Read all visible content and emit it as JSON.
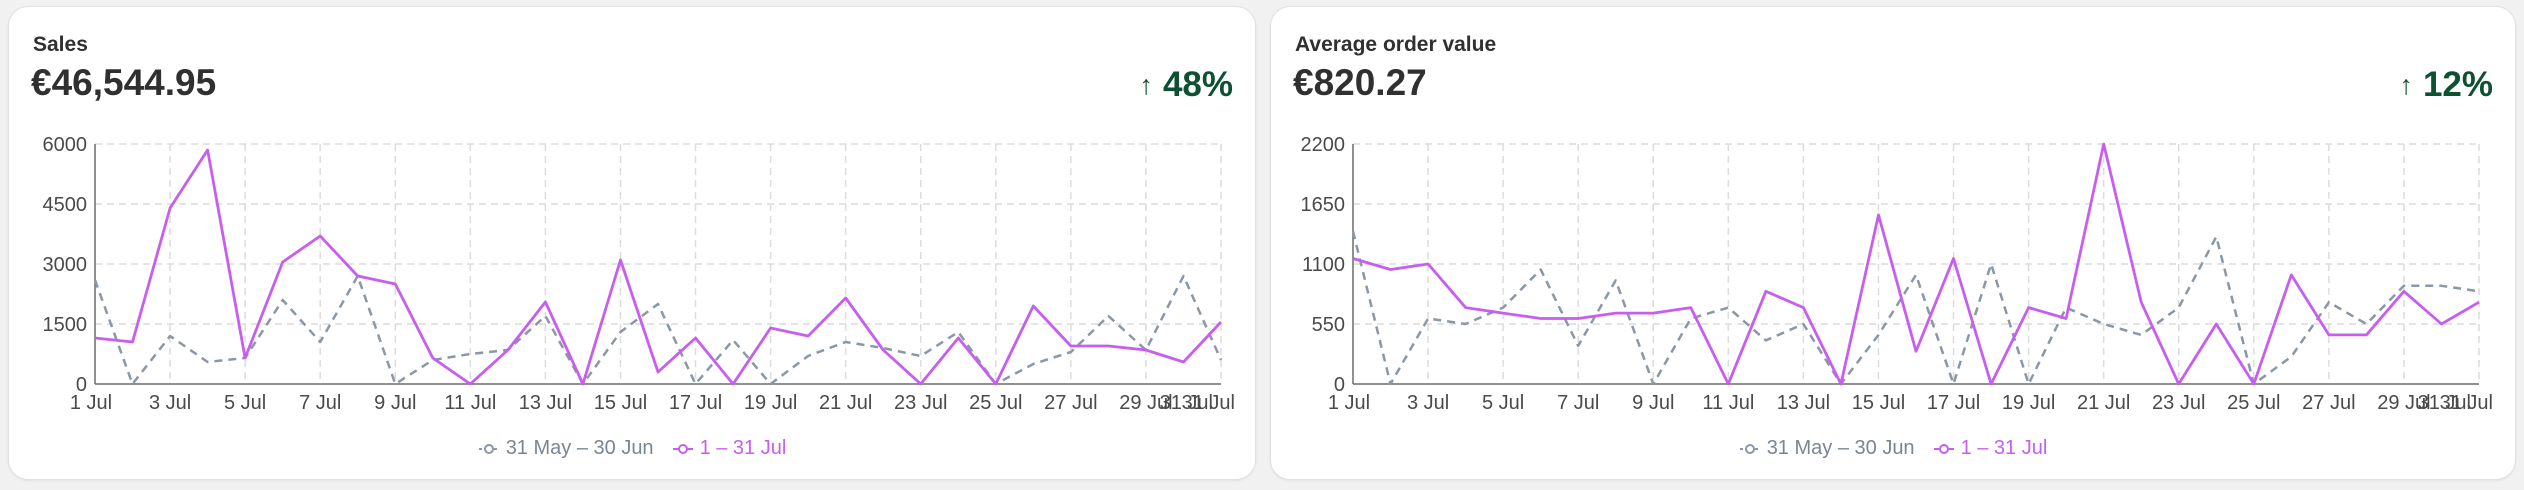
{
  "cards": [
    {
      "title": "Sales",
      "value": "€46,544.95",
      "change": "48%",
      "change_icon": "arrow-up-icon",
      "change_color": "#0c5132"
    },
    {
      "title": "Average order value",
      "value": "€820.27",
      "change": "12%",
      "change_icon": "arrow-up-icon",
      "change_color": "#0c5132"
    }
  ],
  "chart_data": [
    {
      "type": "line",
      "title": "Sales",
      "xlabel": "",
      "ylabel": "",
      "categories": [
        "1 Jul",
        "2 Jul",
        "3 Jul",
        "4 Jul",
        "5 Jul",
        "6 Jul",
        "7 Jul",
        "8 Jul",
        "9 Jul",
        "10 Jul",
        "11 Jul",
        "12 Jul",
        "13 Jul",
        "14 Jul",
        "15 Jul",
        "16 Jul",
        "17 Jul",
        "18 Jul",
        "19 Jul",
        "20 Jul",
        "21 Jul",
        "22 Jul",
        "23 Jul",
        "24 Jul",
        "25 Jul",
        "26 Jul",
        "27 Jul",
        "28 Jul",
        "29 Jul",
        "30 Jul",
        "31 Jul"
      ],
      "x_tick_labels": [
        "1 Jul",
        "3 Jul",
        "5 Jul",
        "7 Jul",
        "9 Jul",
        "11 Jul",
        "13 Jul",
        "15 Jul",
        "17 Jul",
        "19 Jul",
        "21 Jul",
        "23 Jul",
        "25 Jul",
        "27 Jul",
        "29 Jul",
        "31 Jul",
        "31 Jul"
      ],
      "y_ticks": [
        0,
        1500,
        3000,
        4500,
        6000
      ],
      "y_tick_labels": [
        "0",
        "1500",
        "3000",
        "4500",
        "6000"
      ],
      "ylim": [
        0,
        6000
      ],
      "grid": true,
      "legend_position": "bottom-center",
      "series": [
        {
          "name": "31 May – 30 Jun",
          "color": "#8a97a6",
          "dashed": true,
          "values": [
            2600,
            0,
            1200,
            550,
            650,
            2100,
            1050,
            2700,
            0,
            600,
            750,
            850,
            1700,
            0,
            1300,
            2000,
            0,
            1100,
            0,
            700,
            1050,
            900,
            700,
            1300,
            0,
            500,
            800,
            1700,
            850,
            2700,
            600
          ]
        },
        {
          "name": "1 – 31 Jul",
          "color": "#c75ef0",
          "dashed": false,
          "values": [
            1150,
            1050,
            4400,
            5850,
            650,
            3050,
            3700,
            2700,
            2500,
            650,
            0,
            850,
            2050,
            0,
            3100,
            300,
            1150,
            0,
            1400,
            1200,
            2150,
            850,
            0,
            1150,
            0,
            1950,
            950,
            950,
            850,
            550,
            1550
          ]
        }
      ]
    },
    {
      "type": "line",
      "title": "Average order value",
      "xlabel": "",
      "ylabel": "",
      "categories": [
        "1 Jul",
        "2 Jul",
        "3 Jul",
        "4 Jul",
        "5 Jul",
        "6 Jul",
        "7 Jul",
        "8 Jul",
        "9 Jul",
        "10 Jul",
        "11 Jul",
        "12 Jul",
        "13 Jul",
        "14 Jul",
        "15 Jul",
        "16 Jul",
        "17 Jul",
        "18 Jul",
        "19 Jul",
        "20 Jul",
        "21 Jul",
        "22 Jul",
        "23 Jul",
        "24 Jul",
        "25 Jul",
        "26 Jul",
        "27 Jul",
        "28 Jul",
        "29 Jul",
        "30 Jul",
        "31 Jul"
      ],
      "x_tick_labels": [
        "1 Jul",
        "3 Jul",
        "5 Jul",
        "7 Jul",
        "9 Jul",
        "11 Jul",
        "13 Jul",
        "15 Jul",
        "17 Jul",
        "19 Jul",
        "21 Jul",
        "23 Jul",
        "25 Jul",
        "27 Jul",
        "29 Jul",
        "31 Jul",
        "31 Jul"
      ],
      "y_ticks": [
        0,
        550,
        1100,
        1650,
        2200
      ],
      "y_tick_labels": [
        "0",
        "550",
        "1100",
        "1650",
        "2200"
      ],
      "ylim": [
        0,
        2200
      ],
      "grid": true,
      "legend_position": "bottom-center",
      "series": [
        {
          "name": "31 May – 30 Jun",
          "color": "#8a97a6",
          "dashed": true,
          "values": [
            1400,
            0,
            600,
            550,
            700,
            1050,
            350,
            950,
            0,
            600,
            700,
            400,
            550,
            0,
            450,
            1000,
            0,
            1100,
            0,
            700,
            550,
            450,
            700,
            1350,
            0,
            250,
            750,
            550,
            900,
            900,
            850
          ]
        },
        {
          "name": "1 – 31 Jul",
          "color": "#c75ef0",
          "dashed": false,
          "values": [
            1150,
            1050,
            1100,
            700,
            650,
            600,
            600,
            650,
            650,
            700,
            0,
            850,
            700,
            0,
            1550,
            300,
            1150,
            0,
            700,
            600,
            2200,
            750,
            0,
            550,
            0,
            1000,
            450,
            450,
            850,
            550,
            750
          ]
        }
      ]
    }
  ]
}
